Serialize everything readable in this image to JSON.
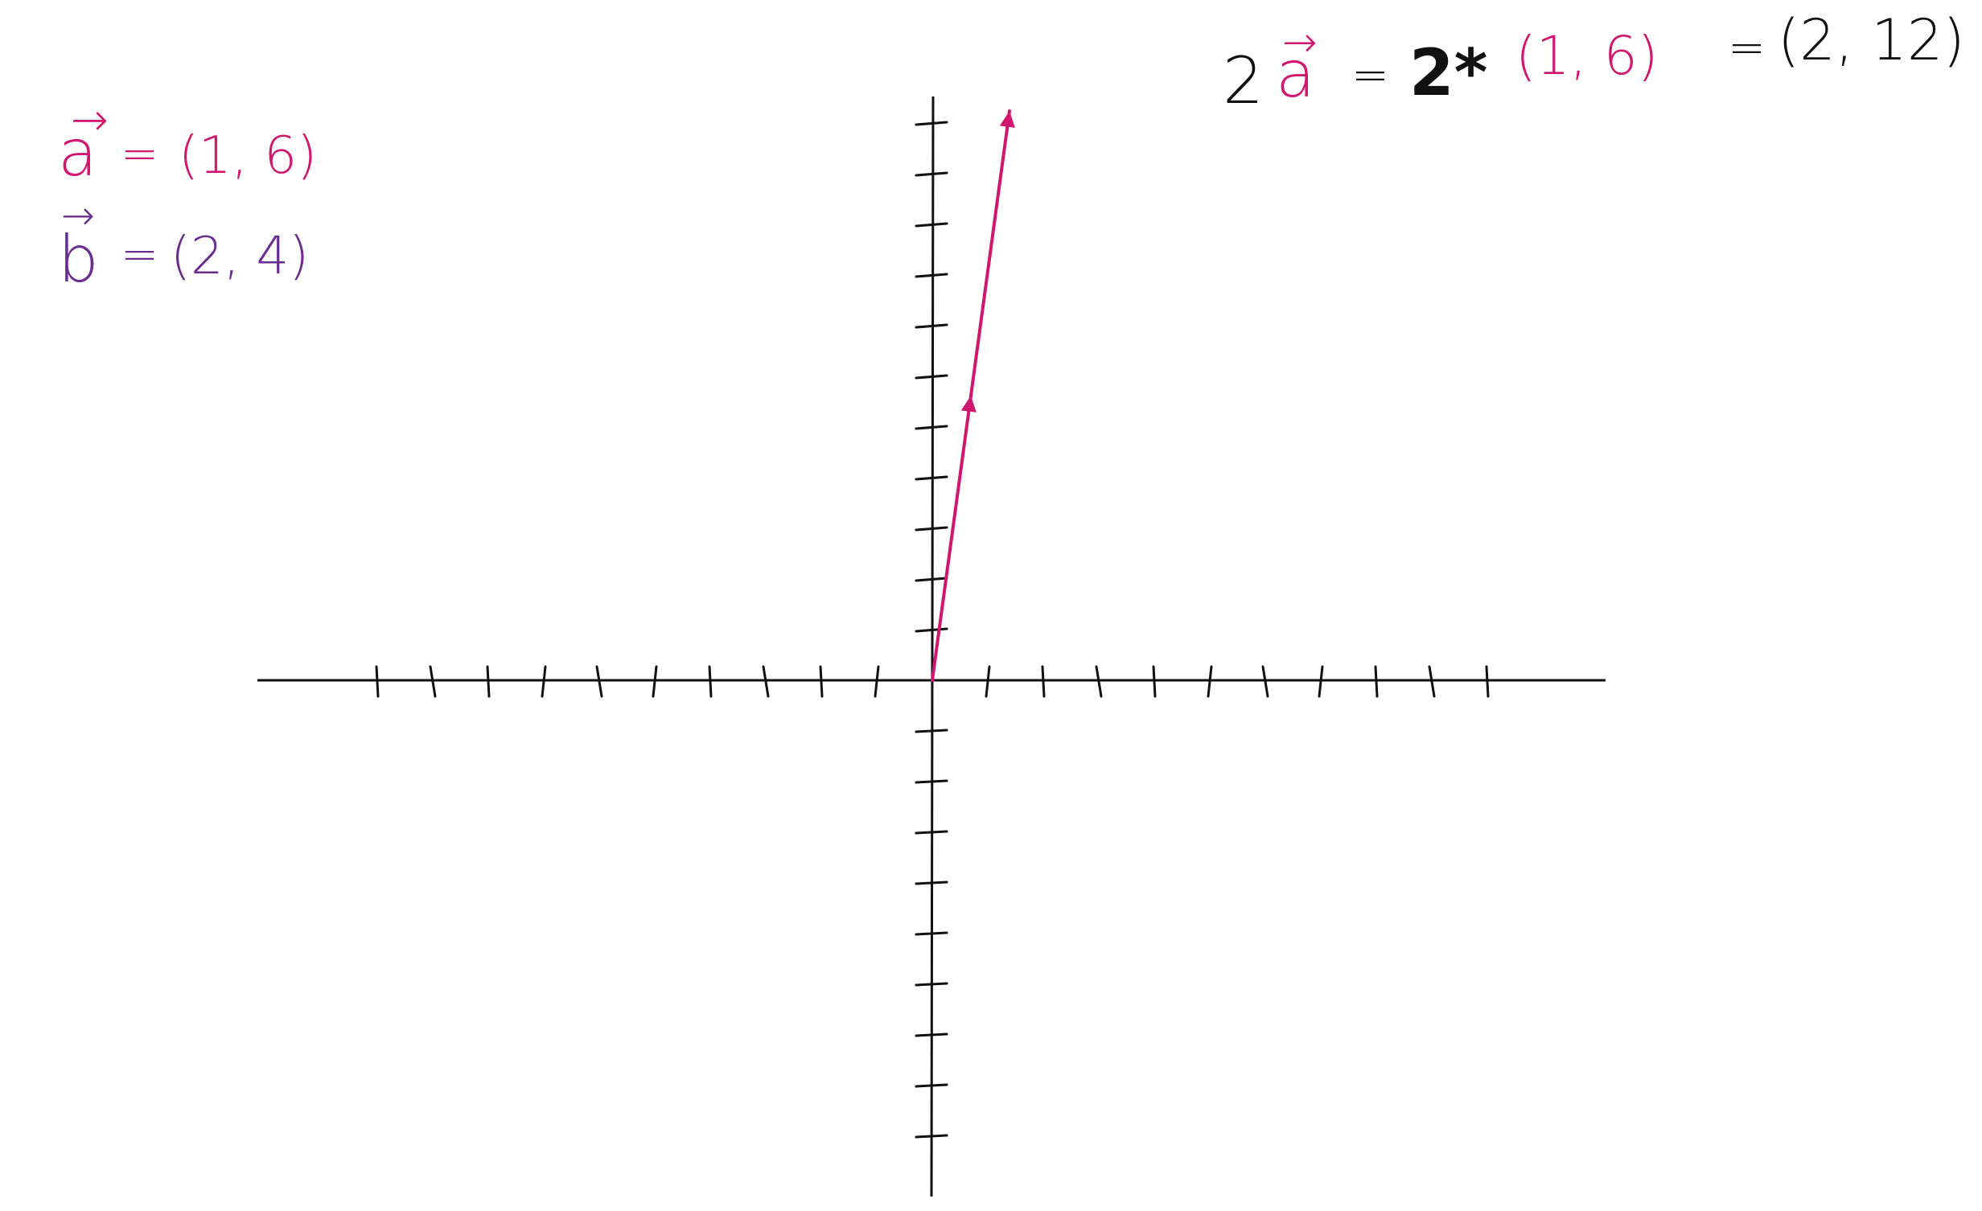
{
  "colors": {
    "ink": "#111111",
    "vector_a": "#d0166e",
    "vector_b": "#6b2c91",
    "background": "#ffffff"
  },
  "notes": {
    "a_def": {
      "name": "a",
      "arrow": "→",
      "equals": "=",
      "value": "(1, 6)"
    },
    "b_def": {
      "name": "b",
      "arrow": "→",
      "equals": "=",
      "value": "(2, 4)"
    },
    "scalar_eq": {
      "coef": "2",
      "vec": "a",
      "arrow": "→",
      "eq1": "=",
      "times": "2*",
      "vec_value": "(1, 6)",
      "eq2": "=",
      "result": "(2, 12)"
    }
  },
  "graph": {
    "x_ticks_per_side": 10,
    "y_ticks_up": 13,
    "y_ticks_down": 10,
    "vectors": [
      {
        "name": "a",
        "from": [
          0,
          0
        ],
        "to": [
          1,
          6
        ]
      },
      {
        "name": "a",
        "from": [
          1,
          6
        ],
        "to": [
          2,
          12
        ]
      }
    ]
  }
}
